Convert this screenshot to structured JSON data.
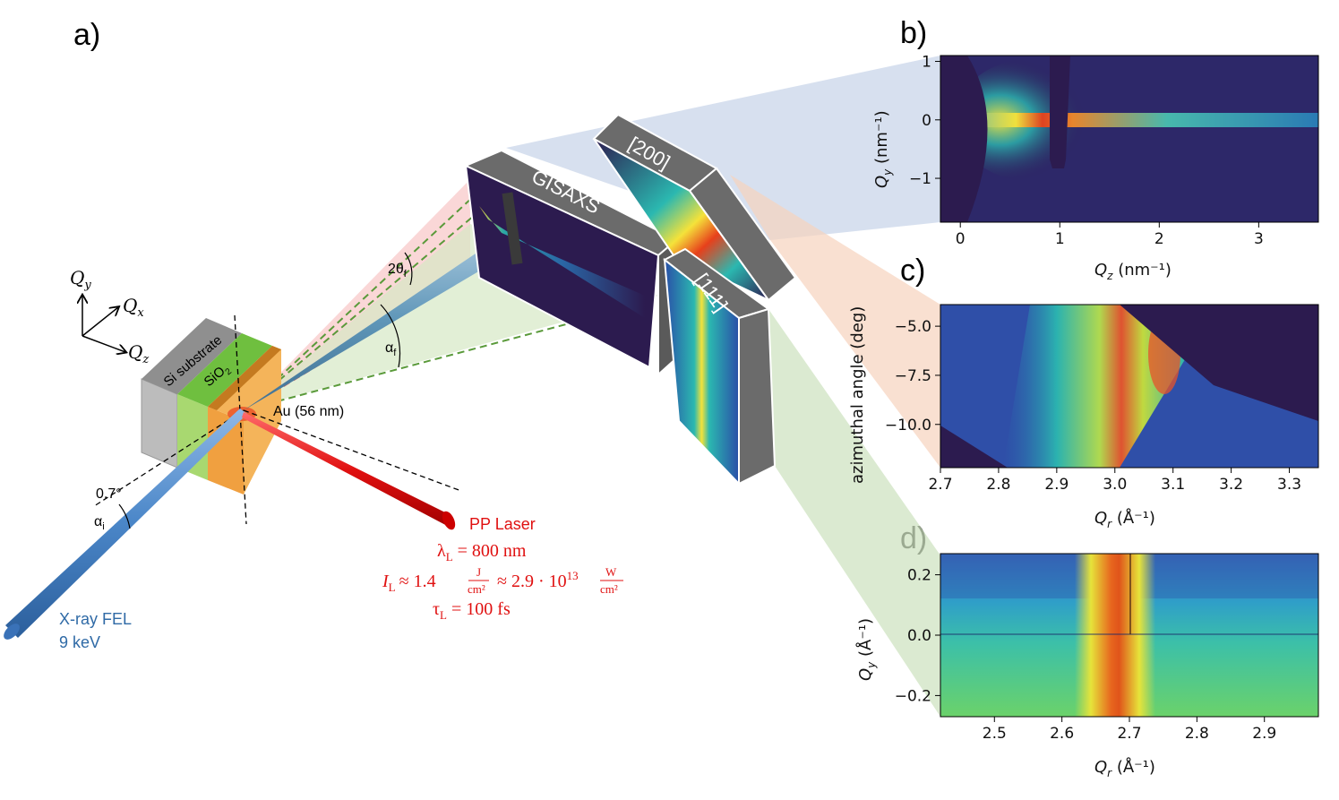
{
  "panels": {
    "a": "a)",
    "b": "b)",
    "c": "c)",
    "d": "d)"
  },
  "axes_3d": {
    "qy": "Q",
    "qy_sub": "y",
    "qx": "Q",
    "qx_sub": "x",
    "qz": "Q",
    "qz_sub": "z"
  },
  "sample": {
    "si": "Si substrate",
    "sio2": "SiO",
    "sio2_sub": "2",
    "au": "Au (56 nm)",
    "angle": "0.7°",
    "alpha_i": "α",
    "alpha_i_sub": "i",
    "two_theta": "2θ",
    "two_theta_sub": "f",
    "alpha_f": "α",
    "alpha_f_sub": "f"
  },
  "xray": {
    "line1": "X-ray FEL",
    "line2": "9 keV"
  },
  "laser": {
    "title": "PP Laser",
    "lambda": "λ",
    "lambda_sub": "L",
    "lambda_val": " = 800 nm",
    "intensity_I": "I",
    "intensity_I_sub": "L",
    "intensity_approx1": "≈ 1.4",
    "frac1_num": "J",
    "frac1_den": "cm²",
    "intensity_approx2": "≈ 2.9 · 10",
    "intensity_exp": "13",
    "frac2_num": "W",
    "frac2_den": "cm²",
    "tau": "τ",
    "tau_sub": "L",
    "tau_val": " = 100 fs"
  },
  "detectors": {
    "gisaxs": "GISAXS",
    "d200": "[200]",
    "d111": "[111]"
  },
  "colors": {
    "background": "#2c1b4f",
    "det_frame": "#6b6b6b",
    "xray_beam": "#4a86c8",
    "laser_beam": "#e01010",
    "au": "#f0a040",
    "sio2": "#a8d870",
    "si": "#b9b9b9",
    "fan_blue": "#c9d6ea",
    "fan_orange": "#f6d3bd",
    "fan_green": "#cfe3c2"
  },
  "plot_b": {
    "xlabel": "Q",
    "xlabel_sub": "z",
    "xlabel_unit": " (nm⁻¹)",
    "ylabel": "Q",
    "ylabel_sub": "y",
    "ylabel_unit": " (nm⁻¹)",
    "xticks": [
      "0",
      "1",
      "2",
      "3"
    ],
    "xtick_values": [
      0,
      1,
      2,
      3
    ],
    "xlim": [
      -0.2,
      3.6
    ],
    "yticks": [
      "1",
      "0",
      "−1"
    ],
    "ytick_values": [
      1,
      0,
      -1
    ],
    "ylim": [
      -1.75,
      1.1
    ]
  },
  "plot_c": {
    "xlabel": "Q",
    "xlabel_sub": "r",
    "xlabel_unit": " (Å⁻¹)",
    "ylabel": "azimuthal angle (deg)",
    "xticks": [
      "2.7",
      "2.8",
      "2.9",
      "3.0",
      "3.1",
      "3.2",
      "3.3"
    ],
    "xtick_values": [
      2.7,
      2.8,
      2.9,
      3.0,
      3.1,
      3.2,
      3.3
    ],
    "xlim": [
      2.7,
      3.35
    ],
    "yticks": [
      "−5.0",
      "−7.5",
      "−10.0"
    ],
    "ytick_values": [
      -5.0,
      -7.5,
      -10.0
    ],
    "ylim": [
      -12.2,
      -3.9
    ]
  },
  "plot_d": {
    "xlabel": "Q",
    "xlabel_sub": "r",
    "xlabel_unit": " (Å⁻¹)",
    "ylabel": "Q",
    "ylabel_sub": "y",
    "ylabel_unit": " (Å⁻¹)",
    "xticks": [
      "2.5",
      "2.6",
      "2.7",
      "2.8",
      "2.9"
    ],
    "xtick_values": [
      2.5,
      2.6,
      2.7,
      2.8,
      2.9
    ],
    "xlim": [
      2.42,
      2.98
    ],
    "yticks": [
      "0.2",
      "0.0",
      "−0.2"
    ],
    "ytick_values": [
      0.2,
      0.0,
      -0.2
    ],
    "ylim": [
      -0.27,
      0.27
    ]
  }
}
